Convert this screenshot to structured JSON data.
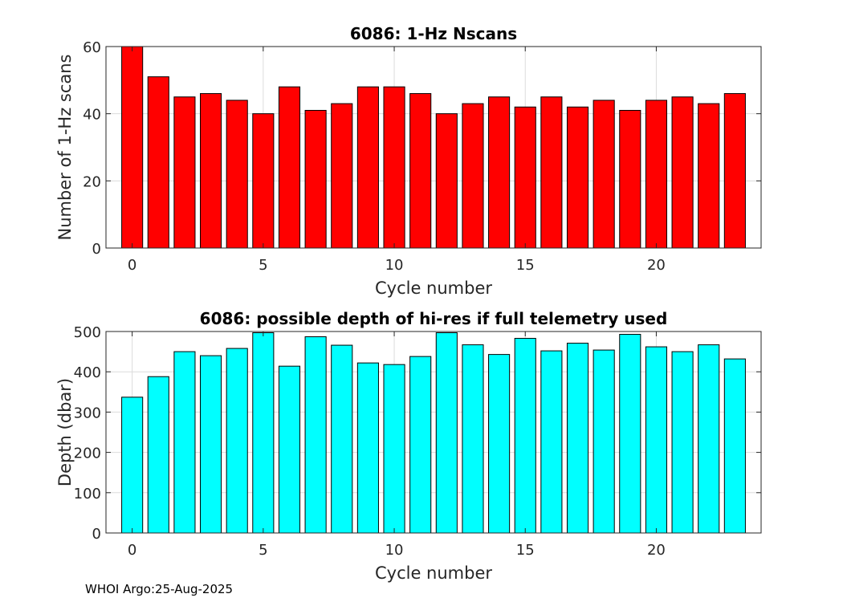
{
  "chart_data": [
    {
      "type": "bar",
      "title": "6086: 1-Hz Nscans",
      "xlabel": "Cycle number",
      "ylabel": "Number of 1-Hz scans",
      "x": [
        0,
        1,
        2,
        3,
        4,
        5,
        6,
        7,
        8,
        9,
        10,
        11,
        12,
        13,
        14,
        15,
        16,
        17,
        18,
        19,
        20,
        21,
        22,
        23
      ],
      "values": [
        60,
        51,
        45,
        46,
        44,
        40,
        48,
        41,
        43,
        48,
        48,
        46,
        40,
        43,
        45,
        42,
        45,
        42,
        44,
        41,
        44,
        45,
        43,
        46
      ],
      "xlim": [
        -1,
        24
      ],
      "ylim": [
        0,
        60
      ],
      "xticks": [
        0,
        5,
        10,
        15,
        20
      ],
      "yticks": [
        0,
        20,
        40,
        60
      ],
      "grid": true,
      "color": "#ff0000"
    },
    {
      "type": "bar",
      "title": "6086: possible depth of hi-res if full telemetry used",
      "xlabel": "Cycle number",
      "ylabel": "Depth (dbar)",
      "x": [
        0,
        1,
        2,
        3,
        4,
        5,
        6,
        7,
        8,
        9,
        10,
        11,
        12,
        13,
        14,
        15,
        16,
        17,
        18,
        19,
        20,
        21,
        22,
        23
      ],
      "values": [
        337,
        388,
        450,
        440,
        458,
        497,
        414,
        487,
        466,
        422,
        418,
        438,
        497,
        467,
        443,
        483,
        452,
        471,
        454,
        493,
        462,
        450,
        467,
        432
      ],
      "xlim": [
        -1,
        24
      ],
      "ylim": [
        0,
        500
      ],
      "xticks": [
        0,
        5,
        10,
        15,
        20
      ],
      "yticks": [
        0,
        100,
        200,
        300,
        400,
        500
      ],
      "grid": true,
      "color": "#00ffff"
    }
  ],
  "footer": {
    "text": "WHOI Argo:25-Aug-2025"
  }
}
